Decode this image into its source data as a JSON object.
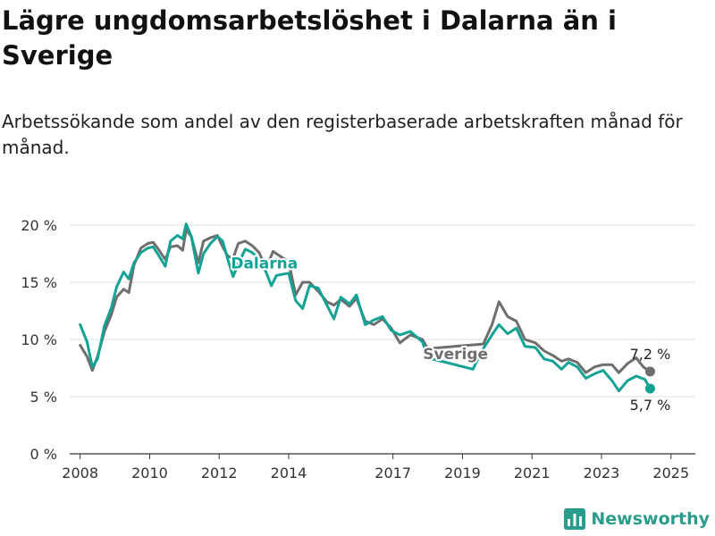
{
  "title": "Lägre ungdomsarbetslöshet i Dalarna än i Sverige",
  "subtitle": "Arbetssökande som andel av den registerbaserade arbetskraften månad för månad.",
  "brand": "Newsworthy",
  "brand_icon": "bar-chart-logo-icon",
  "colors": {
    "Dalarna": "#12a395",
    "Sverige": "#6e6e6e",
    "grid": "#dddddd",
    "axis": "#333333"
  },
  "chart_data": {
    "type": "line",
    "title": "Lägre ungdomsarbetslöshet i Dalarna än i Sverige",
    "subtitle": "Arbetssökande som andel av den registerbaserade arbetskraften månad för månad.",
    "xlabel": "",
    "ylabel": "",
    "ylim": [
      0,
      20
    ],
    "y_ticks": [
      {
        "value": 0,
        "label": "0 %"
      },
      {
        "value": 5,
        "label": "5 %"
      },
      {
        "value": 10,
        "label": "10 %"
      },
      {
        "value": 15,
        "label": "15 %"
      },
      {
        "value": 20,
        "label": "20 %"
      }
    ],
    "x_range": [
      2007.7,
      2025.7
    ],
    "x_ticks": [
      2008,
      2010,
      2012,
      2014,
      2017,
      2019,
      2021,
      2023,
      2025
    ],
    "grid": true,
    "series": [
      {
        "name": "Dalarna",
        "label": "Dalarna",
        "end_label": "5,7 %",
        "points": [
          [
            2008.0,
            11.3
          ],
          [
            2008.2,
            9.8
          ],
          [
            2008.35,
            7.6
          ],
          [
            2008.5,
            8.3
          ],
          [
            2008.7,
            11.2
          ],
          [
            2008.9,
            12.8
          ],
          [
            2009.05,
            14.6
          ],
          [
            2009.25,
            15.9
          ],
          [
            2009.4,
            15.3
          ],
          [
            2009.55,
            16.7
          ],
          [
            2009.75,
            17.6
          ],
          [
            2009.95,
            18.0
          ],
          [
            2010.1,
            18.1
          ],
          [
            2010.25,
            17.4
          ],
          [
            2010.45,
            16.4
          ],
          [
            2010.6,
            18.6
          ],
          [
            2010.8,
            19.1
          ],
          [
            2010.95,
            18.8
          ],
          [
            2011.05,
            20.1
          ],
          [
            2011.2,
            19.0
          ],
          [
            2011.4,
            15.8
          ],
          [
            2011.55,
            17.5
          ],
          [
            2011.75,
            18.4
          ],
          [
            2011.95,
            19.0
          ],
          [
            2012.1,
            18.6
          ],
          [
            2012.25,
            17.0
          ],
          [
            2012.4,
            15.5
          ],
          [
            2012.55,
            16.6
          ],
          [
            2012.75,
            17.9
          ],
          [
            2012.95,
            17.6
          ],
          [
            2013.15,
            17.0
          ],
          [
            2013.35,
            15.9
          ],
          [
            2013.5,
            14.7
          ],
          [
            2013.65,
            15.6
          ],
          [
            2014.0,
            15.8
          ],
          [
            2014.2,
            13.4
          ],
          [
            2014.4,
            12.7
          ],
          [
            2014.6,
            14.7
          ],
          [
            2014.85,
            14.5
          ],
          [
            2015.1,
            13.0
          ],
          [
            2015.3,
            11.8
          ],
          [
            2015.5,
            13.7
          ],
          [
            2015.75,
            13.1
          ],
          [
            2015.95,
            13.9
          ],
          [
            2016.2,
            11.3
          ],
          [
            2016.45,
            11.7
          ],
          [
            2016.7,
            12.0
          ],
          [
            2016.95,
            10.8
          ],
          [
            2017.2,
            10.4
          ],
          [
            2017.5,
            10.7
          ],
          [
            2017.85,
            9.8
          ],
          [
            2018.0,
            8.4
          ],
          [
            2019.3,
            7.4
          ],
          [
            2019.6,
            9.2
          ],
          [
            2019.85,
            10.4
          ],
          [
            2020.05,
            11.3
          ],
          [
            2020.3,
            10.5
          ],
          [
            2020.55,
            11.0
          ],
          [
            2020.8,
            9.4
          ],
          [
            2021.1,
            9.3
          ],
          [
            2021.35,
            8.3
          ],
          [
            2021.6,
            8.1
          ],
          [
            2021.85,
            7.4
          ],
          [
            2022.05,
            8.0
          ],
          [
            2022.3,
            7.6
          ],
          [
            2022.55,
            6.6
          ],
          [
            2022.8,
            7.0
          ],
          [
            2023.05,
            7.3
          ],
          [
            2023.3,
            6.4
          ],
          [
            2023.5,
            5.5
          ],
          [
            2023.75,
            6.4
          ],
          [
            2024.0,
            6.8
          ],
          [
            2024.25,
            6.5
          ],
          [
            2024.4,
            5.7
          ]
        ]
      },
      {
        "name": "Sverige",
        "label": "Sverige",
        "end_label": "7,2 %",
        "points": [
          [
            2008.0,
            9.5
          ],
          [
            2008.2,
            8.5
          ],
          [
            2008.35,
            7.3
          ],
          [
            2008.5,
            8.5
          ],
          [
            2008.7,
            10.7
          ],
          [
            2008.9,
            12.2
          ],
          [
            2009.05,
            13.7
          ],
          [
            2009.25,
            14.4
          ],
          [
            2009.4,
            14.1
          ],
          [
            2009.55,
            16.5
          ],
          [
            2009.75,
            18.0
          ],
          [
            2009.95,
            18.4
          ],
          [
            2010.1,
            18.5
          ],
          [
            2010.25,
            17.9
          ],
          [
            2010.45,
            17.0
          ],
          [
            2010.6,
            18.1
          ],
          [
            2010.8,
            18.2
          ],
          [
            2010.95,
            17.8
          ],
          [
            2011.05,
            19.6
          ],
          [
            2011.2,
            19.0
          ],
          [
            2011.4,
            16.7
          ],
          [
            2011.55,
            18.6
          ],
          [
            2011.75,
            18.9
          ],
          [
            2011.95,
            19.1
          ],
          [
            2012.1,
            18.1
          ],
          [
            2012.25,
            17.3
          ],
          [
            2012.4,
            17.1
          ],
          [
            2012.55,
            18.4
          ],
          [
            2012.75,
            18.6
          ],
          [
            2012.95,
            18.2
          ],
          [
            2013.15,
            17.6
          ],
          [
            2013.35,
            16.2
          ],
          [
            2013.55,
            17.7
          ],
          [
            2013.75,
            17.3
          ],
          [
            2014.0,
            16.8
          ],
          [
            2014.2,
            13.9
          ],
          [
            2014.4,
            15.0
          ],
          [
            2014.6,
            15.0
          ],
          [
            2014.85,
            14.2
          ],
          [
            2015.1,
            13.3
          ],
          [
            2015.3,
            13.0
          ],
          [
            2015.5,
            13.5
          ],
          [
            2015.75,
            12.9
          ],
          [
            2015.95,
            13.6
          ],
          [
            2016.2,
            11.6
          ],
          [
            2016.45,
            11.3
          ],
          [
            2016.7,
            11.8
          ],
          [
            2016.95,
            11.0
          ],
          [
            2017.2,
            9.7
          ],
          [
            2017.5,
            10.4
          ],
          [
            2017.85,
            10.0
          ],
          [
            2018.0,
            9.2
          ],
          [
            2019.6,
            9.6
          ],
          [
            2019.85,
            11.3
          ],
          [
            2020.05,
            13.3
          ],
          [
            2020.3,
            12.0
          ],
          [
            2020.55,
            11.6
          ],
          [
            2020.8,
            10.0
          ],
          [
            2021.1,
            9.7
          ],
          [
            2021.35,
            9.0
          ],
          [
            2021.6,
            8.6
          ],
          [
            2021.85,
            8.1
          ],
          [
            2022.05,
            8.3
          ],
          [
            2022.3,
            8.0
          ],
          [
            2022.55,
            7.1
          ],
          [
            2022.8,
            7.6
          ],
          [
            2023.05,
            7.8
          ],
          [
            2023.3,
            7.8
          ],
          [
            2023.5,
            7.1
          ],
          [
            2023.75,
            7.9
          ],
          [
            2024.0,
            8.4
          ],
          [
            2024.2,
            7.6
          ],
          [
            2024.4,
            7.2
          ]
        ]
      }
    ]
  }
}
